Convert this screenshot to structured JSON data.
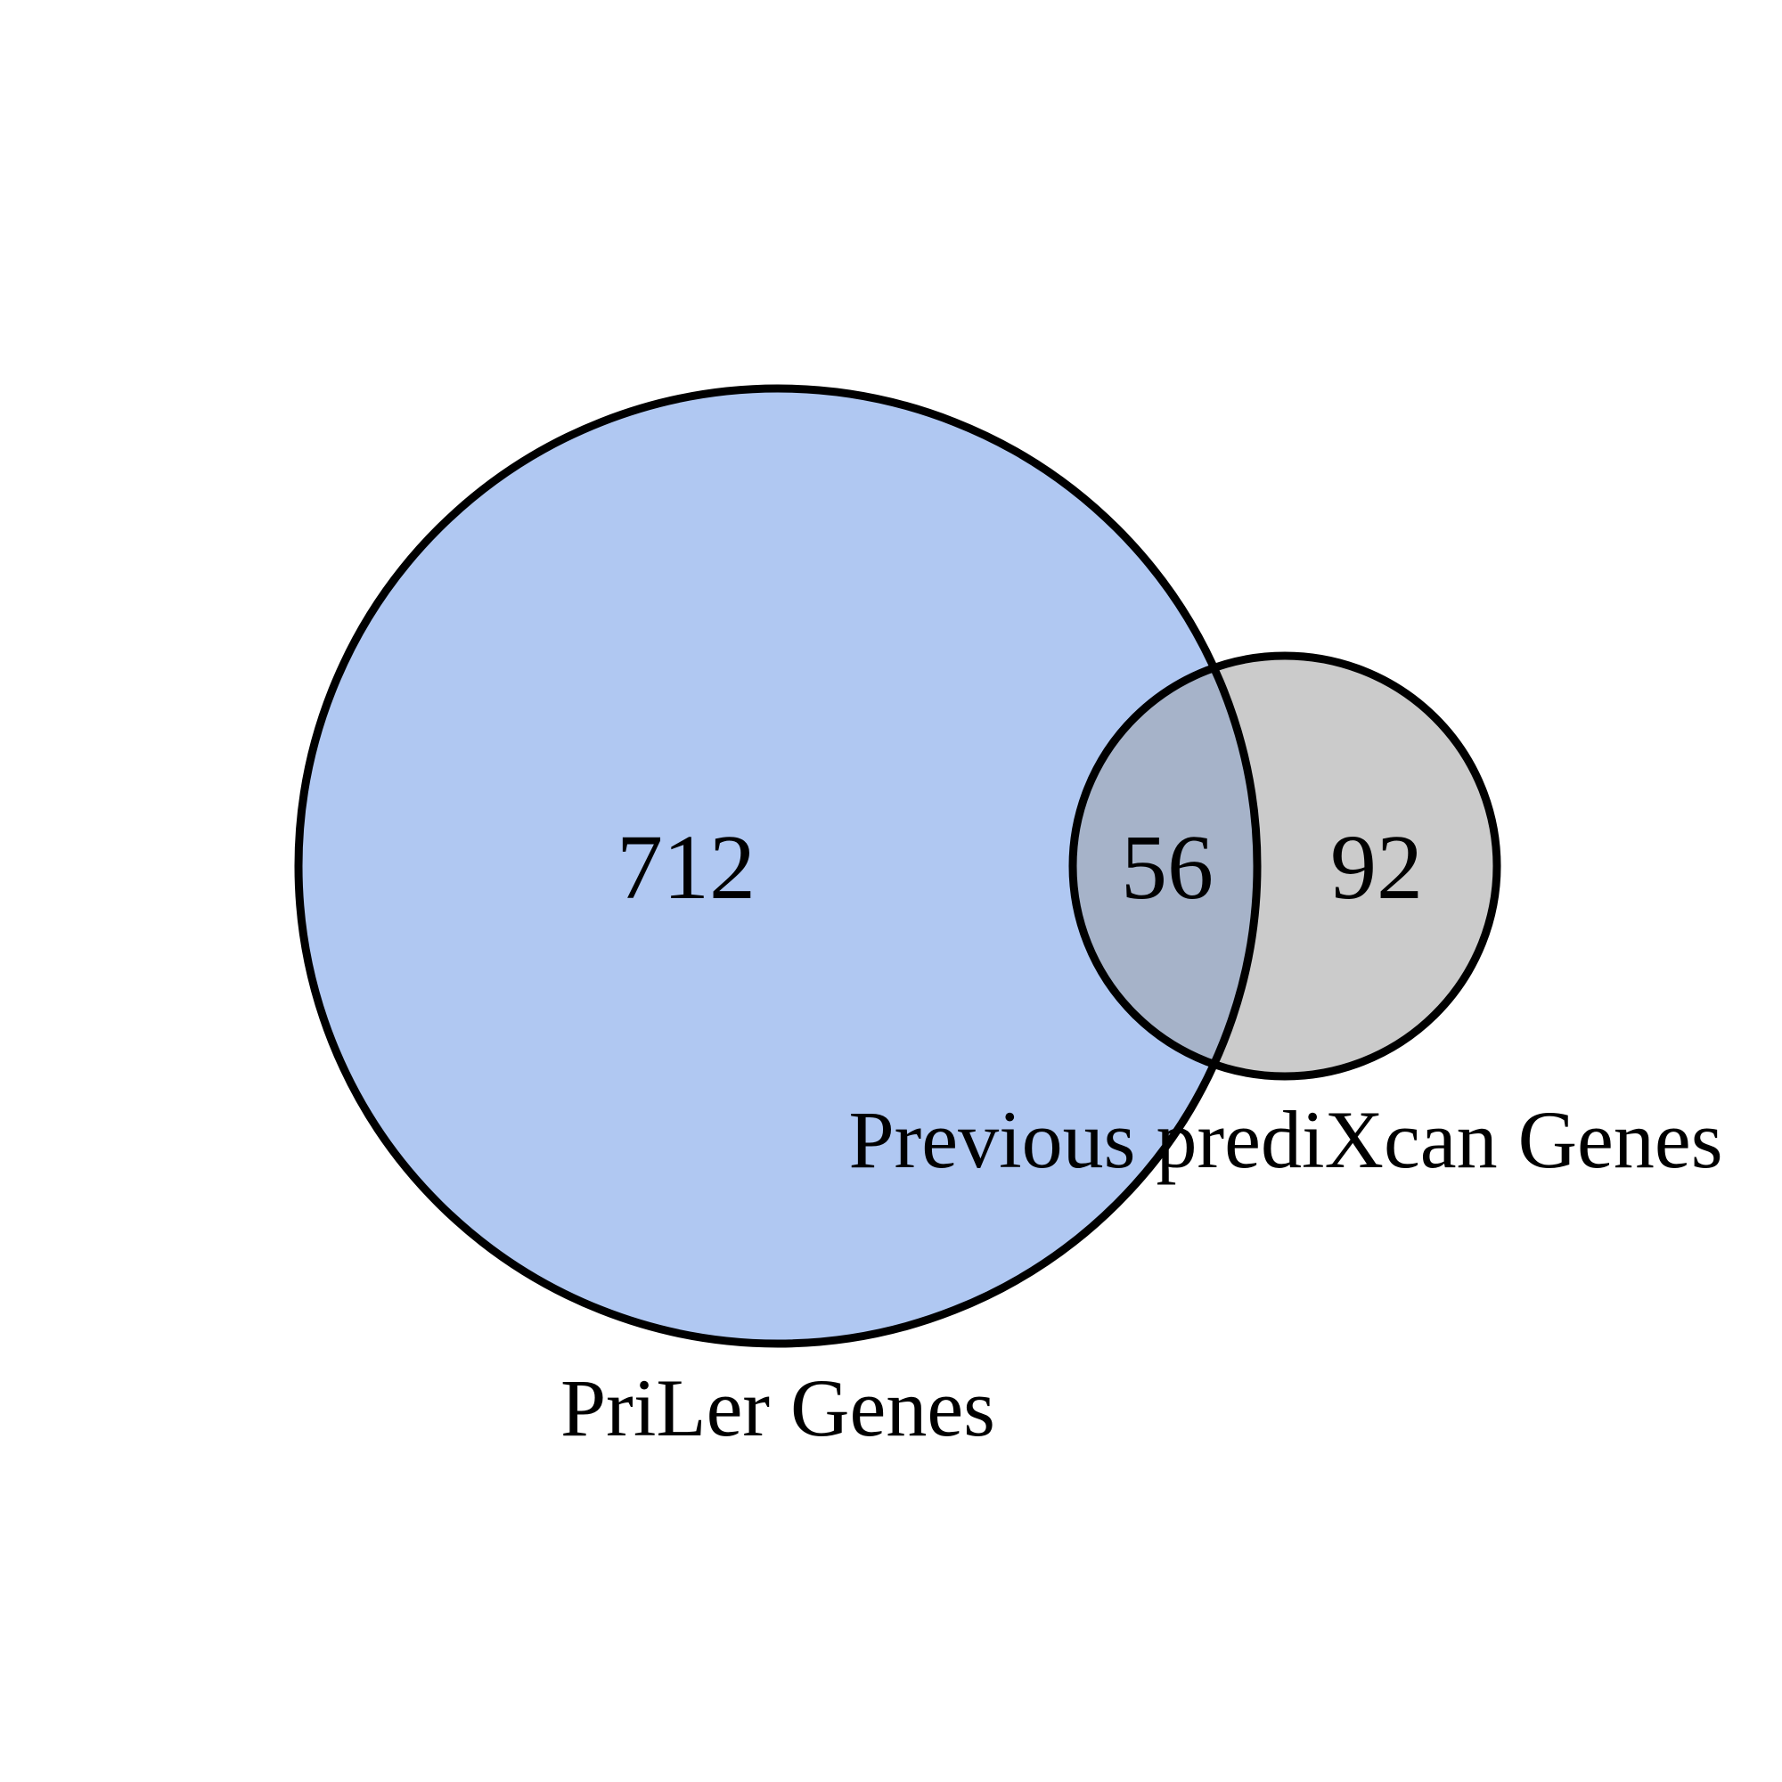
{
  "diagram": {
    "type": "venn",
    "sets": [
      {
        "name": "PriLer Genes",
        "only_count": "712",
        "color": "#b0c8f2"
      },
      {
        "name": "Previous prediXcan Genes",
        "only_count": "92",
        "color": "#cbcbcb"
      }
    ],
    "intersection": {
      "count": "56",
      "color": "#a6b3c9"
    },
    "outline_color": "#000000"
  }
}
